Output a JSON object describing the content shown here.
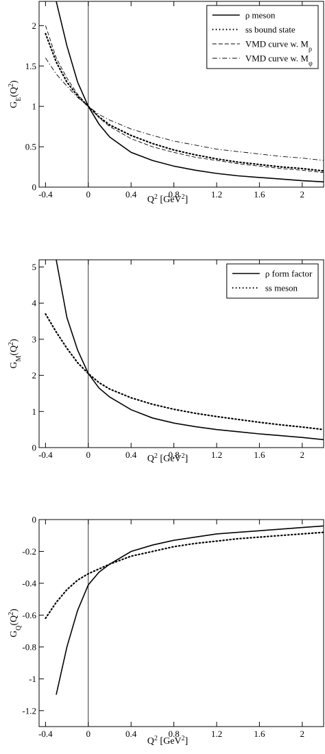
{
  "chart_data": [
    {
      "type": "line",
      "legend": "upper right",
      "zero_line": true,
      "y_label": [
        {
          "text": "G"
        },
        {
          "text": "E",
          "script": "sub"
        },
        {
          "text": "(Q"
        },
        {
          "text": "2",
          "script": "sup"
        },
        {
          "text": ")"
        }
      ],
      "x_label": [
        {
          "text": "Q"
        },
        {
          "text": "2",
          "script": "sup"
        },
        {
          "text": "  [GeV"
        },
        {
          "text": "2",
          "script": "sup"
        },
        {
          "text": "]"
        }
      ],
      "xlim": [
        -0.46,
        2.2
      ],
      "ylim": [
        0,
        2.3
      ],
      "xticks": [
        -0.4,
        0,
        0.4,
        0.8,
        1.2,
        1.6,
        2
      ],
      "yticks": [
        0,
        0.5,
        1,
        1.5,
        2
      ],
      "x": [
        -0.4,
        -0.3,
        -0.2,
        -0.1,
        0,
        0.1,
        0.2,
        0.4,
        0.6,
        0.8,
        1.0,
        1.2,
        1.4,
        1.6,
        1.8,
        2.0,
        2.2
      ],
      "series": [
        {
          "name": "ρ meson",
          "color": "#000000",
          "dash": "solid",
          "values": [
            null,
            2.3,
            1.75,
            1.3,
            1,
            0.78,
            0.62,
            0.43,
            0.33,
            0.26,
            0.21,
            0.17,
            0.14,
            0.12,
            0.1,
            0.08,
            0.065
          ]
        },
        {
          "name": "ss bound state",
          "color": "#000000",
          "dash": "dotted",
          "values": [
            1.9,
            1.55,
            1.3,
            1.13,
            1,
            0.87,
            0.77,
            0.64,
            0.54,
            0.46,
            0.4,
            0.35,
            0.31,
            0.28,
            0.25,
            0.23,
            0.2
          ]
        },
        {
          "name": "VMD curve w. M",
          "name_sub": "ρ",
          "color": "#000000",
          "dash": "dashed",
          "values": [
            2.0,
            1.6,
            1.35,
            1.15,
            1,
            0.86,
            0.75,
            0.6,
            0.5,
            0.43,
            0.37,
            0.33,
            0.29,
            0.26,
            0.23,
            0.21,
            0.18
          ]
        },
        {
          "name": "VMD curve w. M",
          "name_sub": "φ",
          "color": "#000000",
          "dash": "dashdot",
          "values": [
            1.6,
            1.4,
            1.25,
            1.11,
            1,
            0.9,
            0.83,
            0.72,
            0.64,
            0.57,
            0.52,
            0.47,
            0.44,
            0.41,
            0.38,
            0.36,
            0.33
          ]
        }
      ]
    },
    {
      "type": "line",
      "legend": "upper right",
      "zero_line": true,
      "y_label": [
        {
          "text": "G"
        },
        {
          "text": "M",
          "script": "sub"
        },
        {
          "text": "(Q"
        },
        {
          "text": "2",
          "script": "sup"
        },
        {
          "text": ")"
        }
      ],
      "x_label": [
        {
          "text": "Q"
        },
        {
          "text": "2",
          "script": "sup"
        },
        {
          "text": "  [GeV"
        },
        {
          "text": "2",
          "script": "sup"
        },
        {
          "text": "]"
        }
      ],
      "xlim": [
        -0.46,
        2.2
      ],
      "ylim": [
        0,
        5.2
      ],
      "xticks": [
        -0.4,
        0,
        0.4,
        0.8,
        1.2,
        1.6,
        2
      ],
      "yticks": [
        0,
        1,
        2,
        3,
        4,
        5
      ],
      "x": [
        -0.4,
        -0.3,
        -0.2,
        -0.1,
        0,
        0.1,
        0.2,
        0.4,
        0.6,
        0.8,
        1.0,
        1.2,
        1.4,
        1.6,
        1.8,
        2.0,
        2.2
      ],
      "series": [
        {
          "name": "ρ form factor",
          "color": "#000000",
          "dash": "solid",
          "values": [
            null,
            5.2,
            3.6,
            2.7,
            2.05,
            1.65,
            1.4,
            1.05,
            0.82,
            0.68,
            0.58,
            0.5,
            0.44,
            0.38,
            0.33,
            0.28,
            0.22
          ]
        },
        {
          "name": "ss meson",
          "color": "#000000",
          "dash": "dotted",
          "values": [
            3.7,
            3.2,
            2.75,
            2.35,
            2.05,
            1.8,
            1.62,
            1.38,
            1.2,
            1.06,
            0.95,
            0.86,
            0.78,
            0.7,
            0.63,
            0.57,
            0.5
          ]
        }
      ]
    },
    {
      "type": "line",
      "zero_line": true,
      "y_label": [
        {
          "text": "G"
        },
        {
          "text": "Q",
          "script": "sub"
        },
        {
          "text": "(Q"
        },
        {
          "text": "2",
          "script": "sup"
        },
        {
          "text": ")"
        }
      ],
      "x_label": [
        {
          "text": "Q"
        },
        {
          "text": "2",
          "script": "sup"
        },
        {
          "text": "  [GeV"
        },
        {
          "text": "2",
          "script": "sup"
        },
        {
          "text": "]"
        }
      ],
      "xlim": [
        -0.46,
        2.2
      ],
      "ylim": [
        -1.3,
        0
      ],
      "xticks": [
        -0.4,
        0,
        0.4,
        0.8,
        1.2,
        1.6,
        2
      ],
      "yticks": [
        -1.2,
        -1,
        -0.8,
        -0.6,
        -0.4,
        -0.2,
        0
      ],
      "x": [
        -0.4,
        -0.3,
        -0.2,
        -0.1,
        0,
        0.1,
        0.2,
        0.4,
        0.6,
        0.8,
        1.0,
        1.2,
        1.4,
        1.6,
        1.8,
        2.0,
        2.2
      ],
      "series": [
        {
          "color": "#000000",
          "dash": "solid",
          "values": [
            null,
            -1.1,
            -0.8,
            -0.57,
            -0.41,
            -0.33,
            -0.28,
            -0.2,
            -0.16,
            -0.13,
            -0.11,
            -0.09,
            -0.08,
            -0.07,
            -0.06,
            -0.05,
            -0.04
          ]
        },
        {
          "color": "#000000",
          "dash": "dotted",
          "values": [
            -0.62,
            -0.52,
            -0.44,
            -0.38,
            -0.34,
            -0.31,
            -0.28,
            -0.23,
            -0.2,
            -0.17,
            -0.15,
            -0.135,
            -0.12,
            -0.11,
            -0.1,
            -0.09,
            -0.08
          ]
        }
      ]
    }
  ]
}
